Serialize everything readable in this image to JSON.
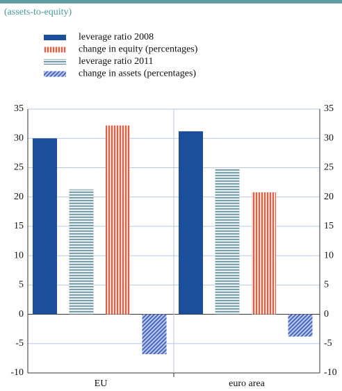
{
  "chart_data": {
    "type": "bar",
    "subtitle": "(assets-to-equity)",
    "categories": [
      "EU",
      "euro area"
    ],
    "series": [
      {
        "name": "leverage ratio 2008",
        "color": "#1b4f9c",
        "values": [
          30.0,
          31.2
        ]
      },
      {
        "name": "change in equity (percentages)",
        "color": "#d9624a",
        "values": [
          32.2,
          20.8
        ]
      },
      {
        "name": "leverage ratio 2011",
        "color": "#5f8a94",
        "values": [
          21.3,
          24.8
        ]
      },
      {
        "name": "change in assets (percentages)",
        "color": "#4a68c0",
        "values": [
          -6.8,
          -3.8
        ]
      }
    ],
    "ylim": [
      -10,
      35
    ],
    "yticks": [
      -10,
      -5,
      0,
      5,
      10,
      15,
      20,
      25,
      30,
      35
    ],
    "grid": true
  }
}
